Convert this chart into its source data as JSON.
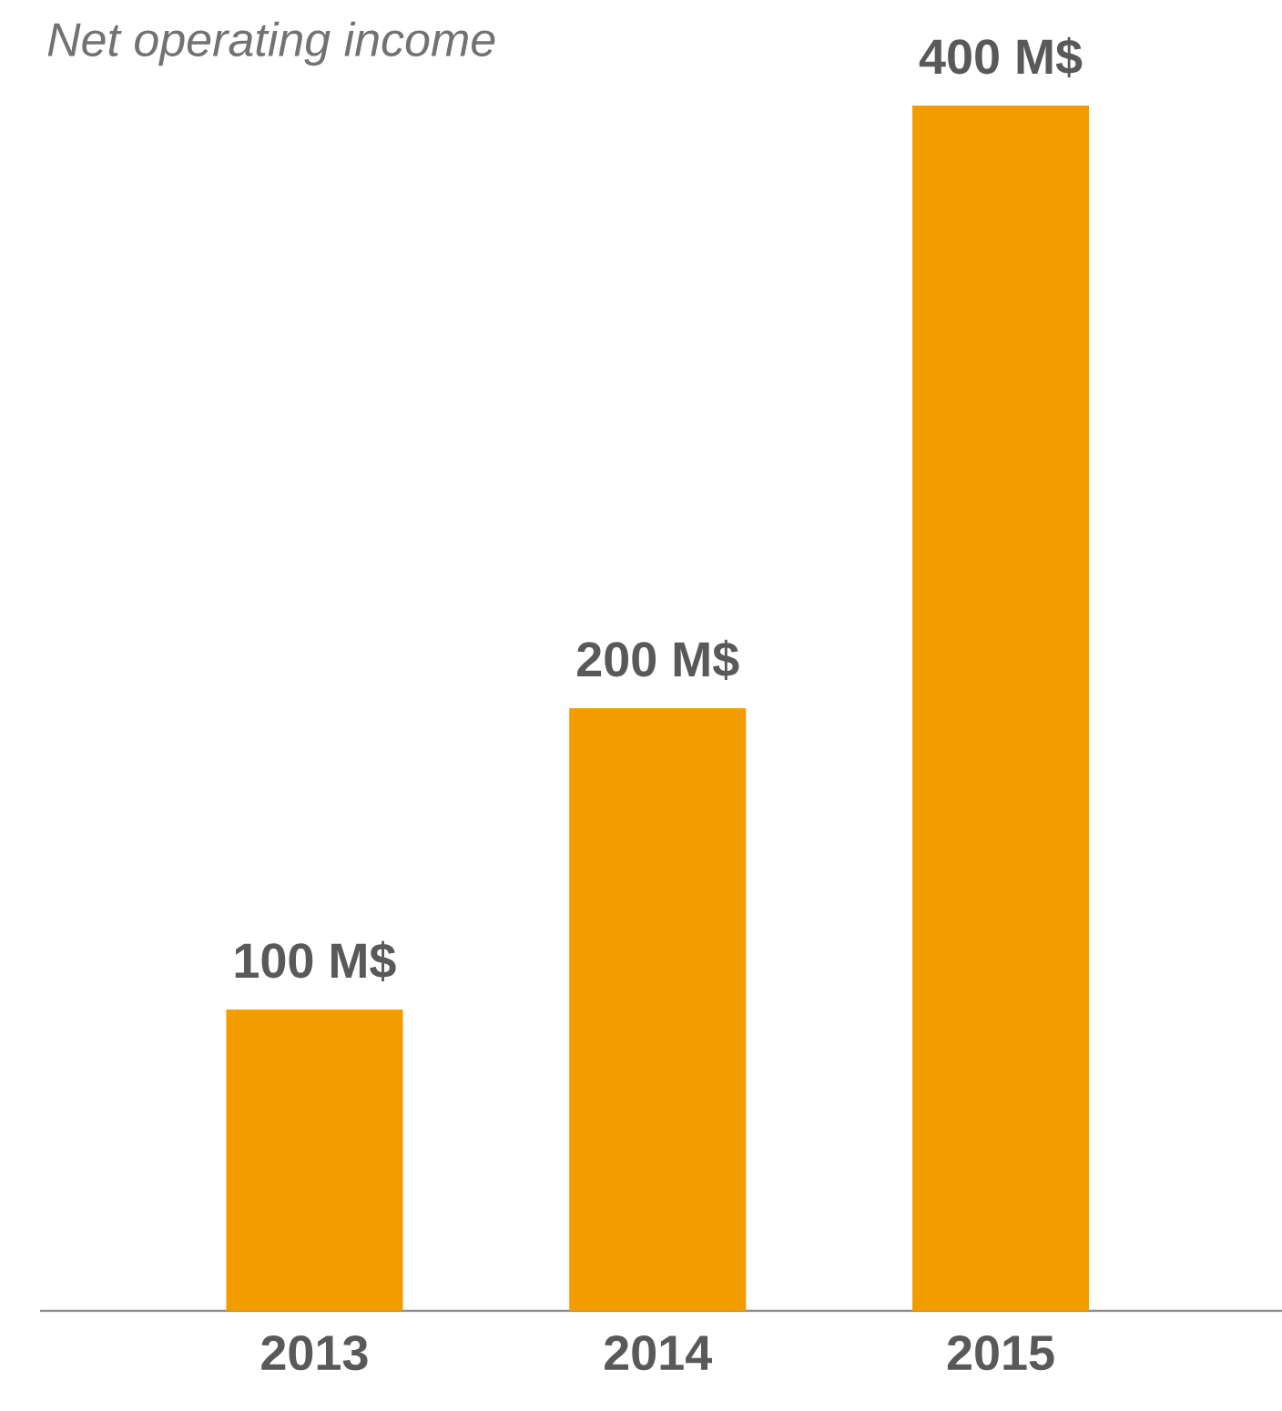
{
  "chart_data": {
    "type": "bar",
    "title": "Net operating income",
    "categories": [
      "2013",
      "2014",
      "2015"
    ],
    "values": [
      100,
      200,
      400
    ],
    "value_labels": [
      "100 M$",
      "200 M$",
      "400 M$"
    ],
    "color": "#f39c00"
  }
}
